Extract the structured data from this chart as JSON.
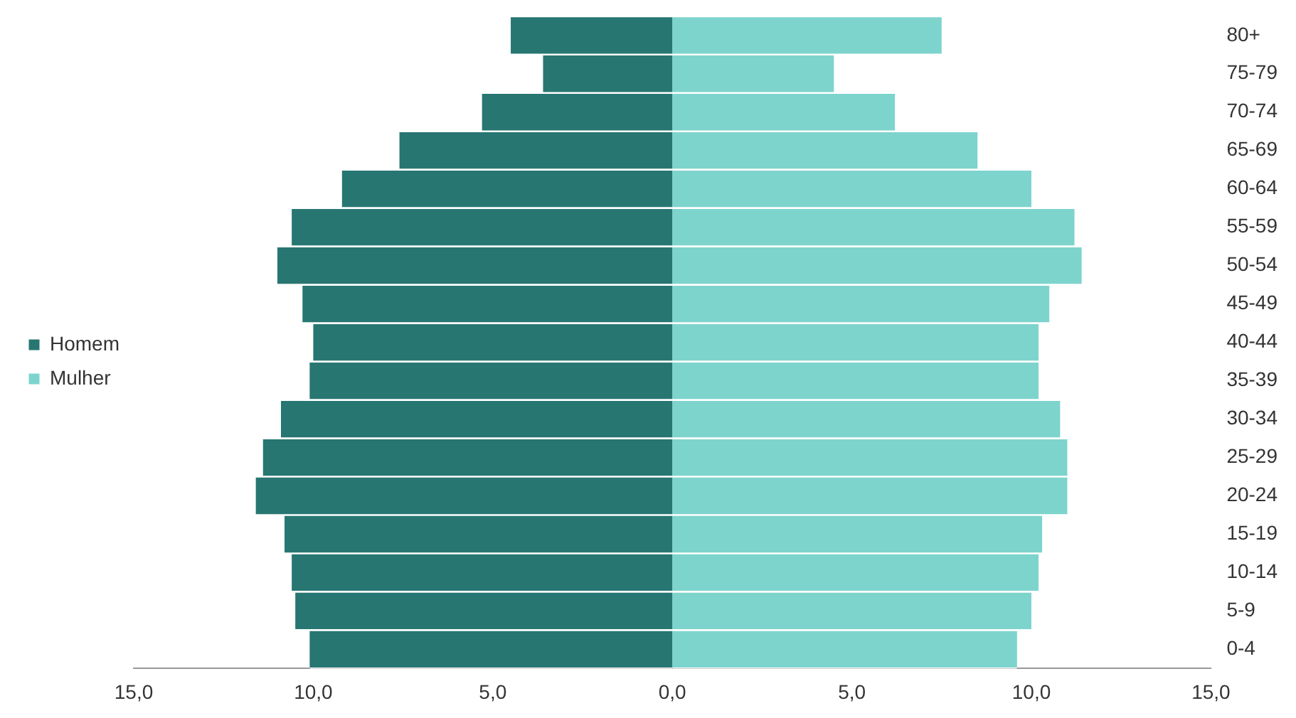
{
  "chart_data": {
    "type": "bar",
    "orientation": "horizontal",
    "stacked": true,
    "categories": [
      "80+",
      "75-79",
      "70-74",
      "65-69",
      "60-64",
      "55-59",
      "50-54",
      "45-49",
      "40-44",
      "35-39",
      "30-34",
      "25-29",
      "20-24",
      "15-19",
      "10-14",
      "5-9",
      "0-4"
    ],
    "series": [
      {
        "name": "Homem",
        "color": "#277672",
        "values": [
          -4.5,
          -3.6,
          -5.3,
          -7.6,
          -9.2,
          -10.6,
          -11.0,
          -10.3,
          -10.0,
          -10.1,
          -10.9,
          -11.4,
          -11.6,
          -10.8,
          -10.6,
          -10.5,
          -10.1
        ]
      },
      {
        "name": "Mulher",
        "color": "#7dd4cd",
        "values": [
          7.5,
          4.5,
          6.2,
          8.5,
          10.0,
          11.2,
          11.4,
          10.5,
          10.2,
          10.2,
          10.8,
          11.0,
          11.0,
          10.3,
          10.2,
          10.0,
          9.6
        ]
      }
    ],
    "xlim": [
      -15,
      15
    ],
    "xticks": [
      {
        "value": -15,
        "label": "15,0"
      },
      {
        "value": -10,
        "label": "10,0"
      },
      {
        "value": -5,
        "label": "5,0"
      },
      {
        "value": 0,
        "label": "0,0"
      },
      {
        "value": 5,
        "label": "5,0"
      },
      {
        "value": 10,
        "label": "10,0"
      },
      {
        "value": 15,
        "label": "15,0"
      }
    ],
    "grid": false,
    "legend": "left"
  }
}
